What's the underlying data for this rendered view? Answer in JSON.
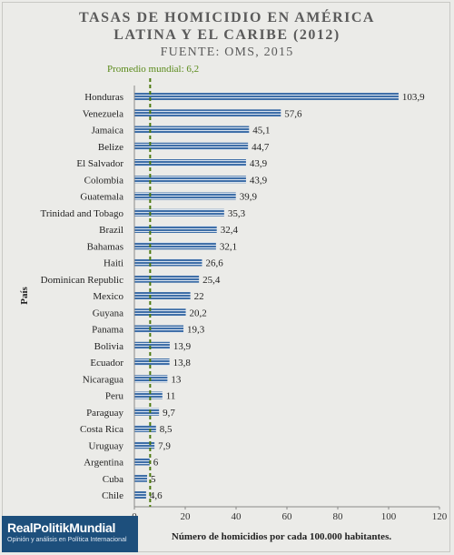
{
  "chart_data": {
    "type": "bar",
    "orientation": "horizontal",
    "title_lines": [
      "TASAS DE HOMICIDIO EN AMÉRICA",
      "LATINA Y EL CARIBE (2012)"
    ],
    "subtitle": "FUENTE: OMS, 2015",
    "xlabel": "Número de homicidios por cada 100.000 habitantes.",
    "ylabel": "País",
    "xlim": [
      0,
      120
    ],
    "xticks": [
      0,
      20,
      40,
      60,
      80,
      100,
      120
    ],
    "grid": false,
    "categories": [
      "Honduras",
      "Venezuela",
      "Jamaica",
      "Belize",
      "El Salvador",
      "Colombia",
      "Guatemala",
      "Trinidad and Tobago",
      "Brazil",
      "Bahamas",
      "Haiti",
      "Dominican Republic",
      "Mexico",
      "Guyana",
      "Panama",
      "Bolivia",
      "Ecuador",
      "Nicaragua",
      "Peru",
      "Paraguay",
      "Costa Rica",
      "Uruguay",
      "Argentina",
      "Cuba",
      "Chile"
    ],
    "values": [
      103.9,
      57.6,
      45.1,
      44.7,
      43.9,
      43.9,
      39.9,
      35.3,
      32.4,
      32.1,
      26.6,
      25.4,
      22,
      20.2,
      19.3,
      13.9,
      13.8,
      13,
      11,
      9.7,
      8.5,
      7.9,
      6,
      5,
      4.6
    ],
    "value_labels": [
      "103,9",
      "57,6",
      "45,1",
      "44,7",
      "43,9",
      "43,9",
      "39,9",
      "35,3",
      "32,4",
      "32,1",
      "26,6",
      "25,4",
      "22",
      "20,2",
      "19,3",
      "13,9",
      "13,8",
      "13",
      "11",
      "9,7",
      "8,5",
      "7,9",
      "6",
      "5",
      "4,6"
    ],
    "reference_line": {
      "value": 6.2,
      "label": "Promedio mundial: 6,2",
      "color": "#4d7a0f"
    },
    "bar_color": "#3f6fa8",
    "background_color": "#ebebe8"
  },
  "logo": {
    "name": "RealPolitikMundial",
    "tagline": "Opinión y análisis en Política Internacional",
    "color": "#1d4f7c"
  }
}
